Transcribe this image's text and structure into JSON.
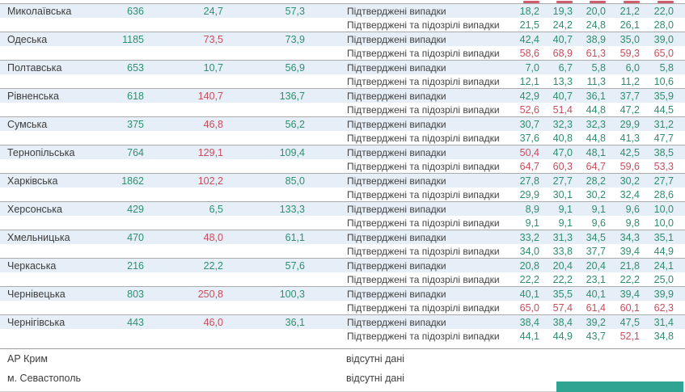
{
  "colors": {
    "green_value": "#2f8e6f",
    "red_value": "#c84d5e",
    "row_highlight": "#e6eff7",
    "band_border": "#ababab",
    "section_border": "#9c9c9c",
    "green_bar": "#2fa492",
    "text": "#3f3f3f"
  },
  "labels": {
    "confirmed": "Підтверджені випадки",
    "suspected": "Підтверджені та підозрілі випадки",
    "no_data": "відсутні дані"
  },
  "regions": [
    {
      "name": "Миколаївська",
      "total": "636",
      "rate_new": "24,7",
      "rate_new_red": false,
      "rate_avg": "57,3",
      "confirmed": [
        "18,2",
        "19,3",
        "20,0",
        "21,2",
        "22,0"
      ],
      "confirmed_red": [],
      "suspected": [
        "21,5",
        "24,2",
        "24,8",
        "26,1",
        "28,0"
      ],
      "suspected_red": []
    },
    {
      "name": "Одеська",
      "total": "1185",
      "rate_new": "73,5",
      "rate_new_red": true,
      "rate_avg": "73,9",
      "confirmed": [
        "42,4",
        "40,7",
        "38,9",
        "35,0",
        "39,0"
      ],
      "confirmed_red": [],
      "suspected": [
        "58,6",
        "68,9",
        "61,3",
        "59,3",
        "65,0"
      ],
      "suspected_red": [
        0,
        1,
        2,
        3,
        4
      ]
    },
    {
      "name": "Полтавська",
      "total": "653",
      "rate_new": "10,7",
      "rate_new_red": false,
      "rate_avg": "56,9",
      "confirmed": [
        "7,0",
        "6,7",
        "5,8",
        "6,0",
        "5,8"
      ],
      "confirmed_red": [],
      "suspected": [
        "12,1",
        "13,3",
        "11,3",
        "11,2",
        "10,6"
      ],
      "suspected_red": []
    },
    {
      "name": "Рівненська",
      "total": "618",
      "rate_new": "140,7",
      "rate_new_red": true,
      "rate_avg": "136,7",
      "confirmed": [
        "42,9",
        "40,7",
        "36,1",
        "37,7",
        "35,9"
      ],
      "confirmed_red": [],
      "suspected": [
        "52,6",
        "51,4",
        "44,8",
        "47,2",
        "44,5"
      ],
      "suspected_red": [
        0,
        1
      ]
    },
    {
      "name": "Сумська",
      "total": "375",
      "rate_new": "46,8",
      "rate_new_red": true,
      "rate_avg": "56,2",
      "confirmed": [
        "30,7",
        "32,3",
        "32,3",
        "29,9",
        "31,2"
      ],
      "confirmed_red": [],
      "suspected": [
        "37,6",
        "40,8",
        "44,8",
        "41,3",
        "47,7"
      ],
      "suspected_red": []
    },
    {
      "name": "Тернопільська",
      "total": "764",
      "rate_new": "129,1",
      "rate_new_red": true,
      "rate_avg": "109,4",
      "confirmed": [
        "50,4",
        "47,0",
        "48,1",
        "42,5",
        "38,5"
      ],
      "confirmed_red": [
        0
      ],
      "suspected": [
        "64,7",
        "60,3",
        "64,7",
        "59,6",
        "53,3"
      ],
      "suspected_red": [
        0,
        1,
        2,
        3,
        4
      ]
    },
    {
      "name": "Харківська",
      "total": "1862",
      "rate_new": "102,2",
      "rate_new_red": true,
      "rate_avg": "85,0",
      "confirmed": [
        "27,8",
        "27,7",
        "28,2",
        "30,2",
        "27,7"
      ],
      "confirmed_red": [],
      "suspected": [
        "29,9",
        "30,1",
        "30,2",
        "32,4",
        "28,6"
      ],
      "suspected_red": []
    },
    {
      "name": "Херсонська",
      "total": "429",
      "rate_new": "6,5",
      "rate_new_red": false,
      "rate_avg": "133,3",
      "confirmed": [
        "8,9",
        "9,1",
        "9,1",
        "9,6",
        "10,0"
      ],
      "confirmed_red": [],
      "suspected": [
        "9,1",
        "9,1",
        "9,6",
        "9,8",
        "10,0"
      ],
      "suspected_red": []
    },
    {
      "name": "Хмельницька",
      "total": "470",
      "rate_new": "48,0",
      "rate_new_red": true,
      "rate_avg": "61,1",
      "confirmed": [
        "33,2",
        "31,3",
        "34,5",
        "34,3",
        "35,1"
      ],
      "confirmed_red": [],
      "suspected": [
        "34,0",
        "33,8",
        "37,7",
        "39,4",
        "44,9"
      ],
      "suspected_red": []
    },
    {
      "name": "Черкаська",
      "total": "216",
      "rate_new": "22,2",
      "rate_new_red": false,
      "rate_avg": "57,6",
      "confirmed": [
        "20,8",
        "20,4",
        "20,4",
        "21,8",
        "24,1"
      ],
      "confirmed_red": [],
      "suspected": [
        "22,2",
        "22,2",
        "23,1",
        "22,2",
        "25,0"
      ],
      "suspected_red": []
    },
    {
      "name": "Чернівецька",
      "total": "803",
      "rate_new": "250,8",
      "rate_new_red": true,
      "rate_avg": "100,3",
      "confirmed": [
        "40,1",
        "35,5",
        "40,1",
        "39,4",
        "39,9"
      ],
      "confirmed_red": [],
      "suspected": [
        "65,0",
        "57,4",
        "61,4",
        "60,1",
        "62,3"
      ],
      "suspected_red": [
        0,
        1,
        2,
        3,
        4
      ]
    },
    {
      "name": "Чернігівська",
      "total": "443",
      "rate_new": "46,0",
      "rate_new_red": true,
      "rate_avg": "36,1",
      "confirmed": [
        "38,4",
        "38,4",
        "39,2",
        "47,5",
        "31,4"
      ],
      "confirmed_red": [],
      "suspected": [
        "44,1",
        "44,9",
        "43,7",
        "52,1",
        "34,8"
      ],
      "suspected_red": [
        3
      ]
    }
  ],
  "no_data": [
    {
      "name": "АР Крим"
    },
    {
      "name": "м. Севастополь"
    }
  ]
}
